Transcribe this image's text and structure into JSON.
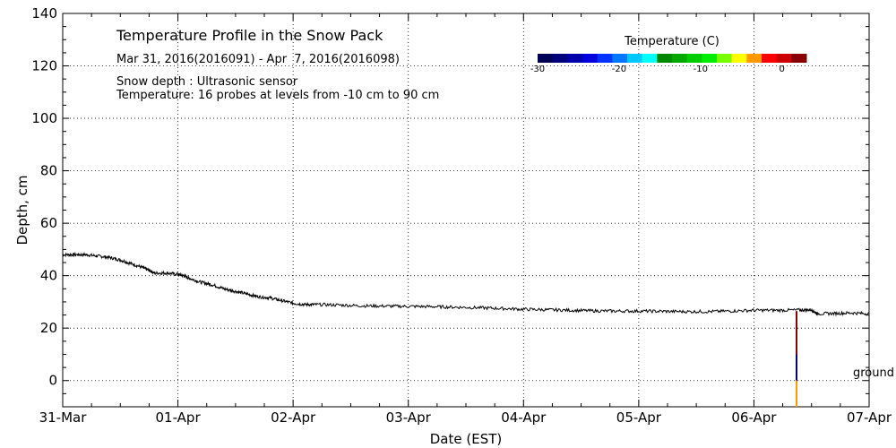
{
  "chart_data": {
    "type": "line",
    "title": "Temperature Profile in the Snow Pack",
    "subtitle": "Mar 31, 2016(2016091) - Apr  7, 2016(2016098)",
    "notes": [
      "Snow depth : Ultrasonic sensor",
      "Temperature: 16 probes at levels from -10 cm to 90 cm"
    ],
    "xlabel": "Date (EST)",
    "ylabel": "Depth, cm",
    "x_ticks": [
      "31-Mar",
      "01-Apr",
      "02-Apr",
      "03-Apr",
      "04-Apr",
      "05-Apr",
      "06-Apr",
      "07-Apr"
    ],
    "xlim": [
      0,
      7
    ],
    "ylim": [
      -10,
      140
    ],
    "y_ticks": [
      0,
      20,
      40,
      60,
      80,
      100,
      120,
      140
    ],
    "grid": true,
    "ground_label": "ground",
    "series": [
      {
        "name": "Snow depth",
        "color": "#000000",
        "x": [
          0,
          0.1,
          0.2,
          0.3,
          0.4,
          0.5,
          0.6,
          0.7,
          0.75,
          0.8,
          0.9,
          1.0,
          1.05,
          1.1,
          1.2,
          1.3,
          1.4,
          1.5,
          1.6,
          1.7,
          1.8,
          1.9,
          2.0,
          2.1,
          2.2,
          2.4,
          2.6,
          2.8,
          3.0,
          3.2,
          3.4,
          3.6,
          3.8,
          4.0,
          4.2,
          4.4,
          4.6,
          4.8,
          5.0,
          5.2,
          5.4,
          5.6,
          5.8,
          6.0,
          6.2,
          6.4,
          6.5,
          6.55,
          6.7,
          6.85,
          7.0
        ],
        "y": [
          48,
          48,
          48,
          47.5,
          47,
          46,
          44.5,
          43,
          42,
          41,
          41,
          40.5,
          40,
          39,
          37.5,
          36.5,
          35,
          34,
          33,
          32,
          31.5,
          30.5,
          29.5,
          29,
          29,
          28.8,
          28.5,
          28.4,
          28.3,
          28.2,
          28,
          27.8,
          27.5,
          27.2,
          27,
          26.8,
          26.6,
          26.5,
          26.5,
          26.4,
          26.3,
          26.3,
          26.5,
          26.8,
          26.8,
          26.9,
          27,
          25.5,
          25.6,
          25.8,
          25.5
        ]
      }
    ],
    "probe_profile": {
      "x": 6.37,
      "segments": [
        {
          "from": 10,
          "to": 26.5,
          "temp_c": 2
        },
        {
          "from": 0,
          "to": 10,
          "temp_c": -28
        },
        {
          "from": -10,
          "to": 0,
          "temp_c": -3
        }
      ]
    },
    "colorbar": {
      "title": "Temperature (C)",
      "range": [
        -30,
        3
      ],
      "tick_values": [
        -30,
        -20,
        -10,
        0
      ],
      "tick_labels": [
        "-30",
        "-20",
        "-10",
        "0"
      ],
      "colors": [
        "#000055",
        "#00007a",
        "#0000aa",
        "#0000dd",
        "#0033ff",
        "#0077ff",
        "#00c8ff",
        "#00ffff",
        "#008800",
        "#00a800",
        "#00cc00",
        "#00ee00",
        "#77ff00",
        "#ffff00",
        "#ff9900",
        "#ff0000",
        "#cc0000",
        "#880000"
      ]
    }
  }
}
